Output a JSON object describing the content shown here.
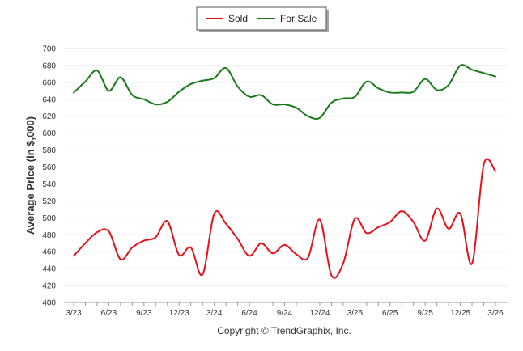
{
  "chart_data": {
    "type": "line",
    "title": "",
    "xlabel": "",
    "ylabel": "Average Price (in $,000)",
    "ylim": [
      400,
      700
    ],
    "yticks": [
      400,
      420,
      440,
      460,
      480,
      500,
      520,
      540,
      560,
      580,
      600,
      620,
      640,
      660,
      680,
      700
    ],
    "x_tick_labels": [
      "3/23",
      "6/23",
      "9/23",
      "12/23",
      "3/24",
      "6/24",
      "9/24",
      "12/24",
      "3/25",
      "6/25",
      "9/25",
      "12/25",
      "3/26"
    ],
    "x_tick_months": [
      0,
      3,
      6,
      9,
      12,
      15,
      18,
      21,
      24,
      27,
      30,
      33,
      36
    ],
    "x_range_months": [
      0,
      36
    ],
    "categories": [
      "Mar 2023",
      "Apr 2023",
      "May 2023",
      "Jun 2023",
      "Jul 2023",
      "Aug 2023",
      "Sep 2023",
      "Oct 2023",
      "Nov 2023",
      "Dec 2023",
      "Jan 2024",
      "Feb 2024",
      "Mar 2024",
      "Apr 2024",
      "May 2024",
      "Jun 2024",
      "Jul 2024",
      "Aug 2024",
      "Sep 2024",
      "Oct 2024",
      "Nov 2024",
      "Dec 2024",
      "Jan 2025",
      "Feb 2025",
      "Mar 2025",
      "Apr 2025",
      "May 2025",
      "Jun 2025",
      "Jul 2025",
      "Aug 2025",
      "Sep 2025",
      "Oct 2025",
      "Nov 2025",
      "Dec 2025",
      "Jan 2026",
      "Feb 2026",
      "Mar 2026"
    ],
    "series": [
      {
        "name": "Sold",
        "color": "#e8101a",
        "values": [
          455,
          470,
          483,
          484,
          451,
          465,
          473,
          477,
          496,
          456,
          465,
          433,
          505,
          493,
          475,
          455,
          470,
          458,
          468,
          457,
          453,
          498,
          432,
          446,
          499,
          482,
          489,
          495,
          508,
          495,
          473,
          511,
          487,
          505,
          446,
          563,
          555
        ]
      },
      {
        "name": "For Sale",
        "color": "#1a7a1a",
        "values": [
          648,
          661,
          674,
          650,
          666,
          645,
          640,
          634,
          637,
          649,
          658,
          662,
          665,
          677,
          655,
          643,
          645,
          634,
          634,
          630,
          620,
          618,
          636,
          641,
          643,
          661,
          653,
          648,
          648,
          649,
          664,
          651,
          657,
          680,
          675,
          671,
          667
        ]
      }
    ],
    "legend": {
      "placement": "top-center",
      "entries": [
        "Sold",
        "For Sale"
      ]
    },
    "grid": true
  },
  "footer": {
    "copyright": "Copyright © TrendGraphix, Inc."
  }
}
